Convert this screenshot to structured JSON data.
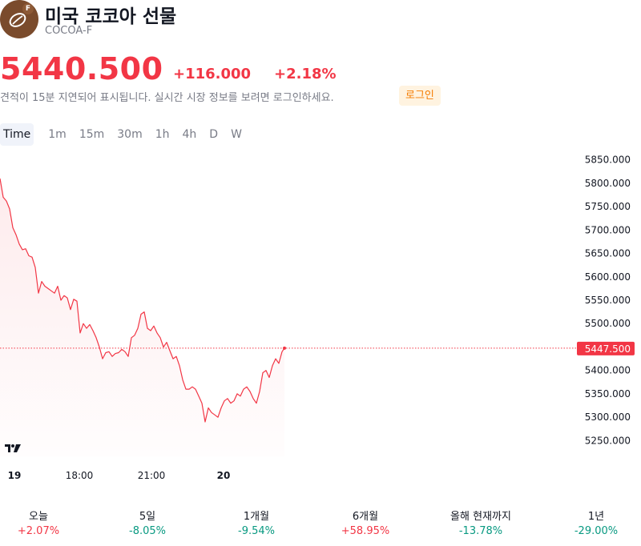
{
  "header": {
    "title": "미국 코코아 선물",
    "symbol": "COCOA-F",
    "logo_badge": "F"
  },
  "quote": {
    "price": "5440.500",
    "change": "+116.000",
    "change_pct": "+2.18%"
  },
  "notice": {
    "text": "견적이 15분 지연되어 표시됩니다. 실시간 시장 정보를 보려면 로그인하세요.",
    "login_label": "로그인"
  },
  "tabs": [
    "Time",
    "1m",
    "15m",
    "30m",
    "1h",
    "4h",
    "D",
    "W"
  ],
  "periods": [
    {
      "label": "오늘",
      "value": "+2.07%",
      "dir": "up"
    },
    {
      "label": "5일",
      "value": "-8.05%",
      "dir": "down"
    },
    {
      "label": "1개월",
      "value": "-9.54%",
      "dir": "down"
    },
    {
      "label": "6개월",
      "value": "+58.95%",
      "dir": "up"
    },
    {
      "label": "올해 현재까지",
      "value": "-13.78%",
      "dir": "down"
    },
    {
      "label": "1년",
      "value": "-29.00%",
      "dir": "down"
    }
  ],
  "colors": {
    "line": "#f23645",
    "up": "#f23645",
    "down": "#089981",
    "brand": "#7a4b2c"
  },
  "chart_data": {
    "type": "area",
    "ylim": [
      5225,
      5875
    ],
    "y_ticks": [
      "5850.000",
      "5800.000",
      "5750.000",
      "5700.000",
      "5650.000",
      "5600.000",
      "5550.000",
      "5500.000",
      "5450.000",
      "5400.000",
      "5350.000",
      "5300.000",
      "5250.000"
    ],
    "x_ticks": [
      {
        "label": "19",
        "bold": true
      },
      {
        "label": "18:00",
        "bold": false
      },
      {
        "label": "21:00",
        "bold": false
      },
      {
        "label": "20",
        "bold": true
      }
    ],
    "last_price_label": "5447.500",
    "last_price": 5447.5,
    "grid": false,
    "series": [
      {
        "x_index": [
          0,
          4,
          8,
          12,
          16,
          20,
          24,
          28,
          32,
          36,
          40,
          44,
          48,
          52,
          56,
          60,
          64,
          68,
          72,
          76,
          80,
          84,
          88,
          92,
          96,
          100,
          104,
          108,
          112,
          116,
          120,
          124,
          128,
          132,
          136,
          140,
          144,
          148,
          152,
          156,
          160,
          164,
          168,
          172,
          176,
          180,
          184,
          188,
          192,
          196,
          200,
          204,
          208,
          212,
          216,
          220,
          224,
          228,
          232,
          236,
          240,
          244,
          248,
          252,
          256,
          260,
          264,
          268,
          272,
          276,
          280,
          284,
          288,
          292,
          296,
          300,
          304,
          308,
          312,
          316,
          320,
          324,
          328,
          332,
          336,
          340,
          344,
          348,
          352,
          355
        ],
        "y": [
          5810,
          5770,
          5762,
          5745,
          5705,
          5690,
          5670,
          5658,
          5660,
          5645,
          5642,
          5620,
          5565,
          5590,
          5580,
          5575,
          5570,
          5565,
          5580,
          5550,
          5560,
          5555,
          5530,
          5552,
          5548,
          5480,
          5500,
          5490,
          5498,
          5485,
          5470,
          5450,
          5425,
          5438,
          5440,
          5430,
          5436,
          5438,
          5445,
          5440,
          5430,
          5470,
          5475,
          5490,
          5520,
          5525,
          5490,
          5485,
          5495,
          5480,
          5470,
          5450,
          5460,
          5442,
          5425,
          5430,
          5410,
          5380,
          5360,
          5360,
          5365,
          5360,
          5345,
          5330,
          5290,
          5320,
          5310,
          5305,
          5300,
          5320,
          5335,
          5340,
          5330,
          5335,
          5350,
          5345,
          5360,
          5365,
          5355,
          5340,
          5330,
          5355,
          5395,
          5400,
          5385,
          5410,
          5425,
          5415,
          5440,
          5447.5
        ]
      }
    ]
  }
}
